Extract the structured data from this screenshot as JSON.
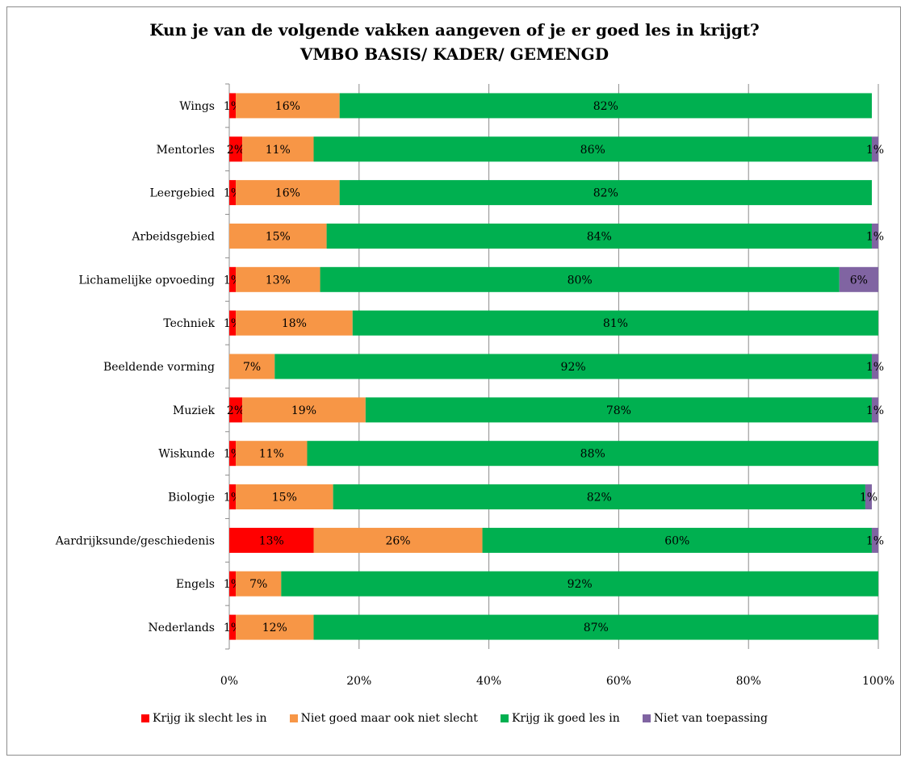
{
  "chart_data": {
    "type": "bar",
    "orientation": "horizontal",
    "stacked": "percent",
    "title_line1": "Kun je van de volgende vakken aangeven of je er goed les in krijgt?",
    "title_line2": "VMBO BASIS/ KADER/ GEMENGD",
    "categories": [
      "Wings",
      "Mentorles",
      "Leergebied",
      "Arbeidsgebied",
      "Lichamelijke opvoeding",
      "Techniek",
      "Beeldende vorming",
      "Muziek",
      "Wiskunde",
      "Biologie",
      "Aardrijksunde/geschiedenis",
      "Engels",
      "Nederlands"
    ],
    "series": [
      {
        "name": "Krijg ik slecht les in",
        "color": "#ff0000",
        "values": [
          1,
          2,
          1,
          0,
          1,
          1,
          0,
          2,
          1,
          1,
          13,
          1,
          1
        ]
      },
      {
        "name": "Niet goed maar ook niet slecht",
        "color": "#f79646",
        "values": [
          16,
          11,
          16,
          15,
          13,
          18,
          7,
          19,
          11,
          15,
          26,
          7,
          12
        ]
      },
      {
        "name": "Krijg ik goed les in",
        "color": "#00b050",
        "values": [
          82,
          86,
          82,
          84,
          80,
          81,
          92,
          78,
          88,
          82,
          60,
          92,
          87
        ]
      },
      {
        "name": "Niet van toepassing",
        "color": "#8064a2",
        "values": [
          0,
          1,
          0,
          1,
          6,
          0,
          1,
          1,
          0,
          1,
          1,
          0,
          0
        ]
      }
    ],
    "xticks": [
      "0%",
      "20%",
      "40%",
      "60%",
      "80%",
      "100%"
    ],
    "xlim": [
      0,
      100
    ],
    "grid": true,
    "legend_position": "bottom"
  }
}
